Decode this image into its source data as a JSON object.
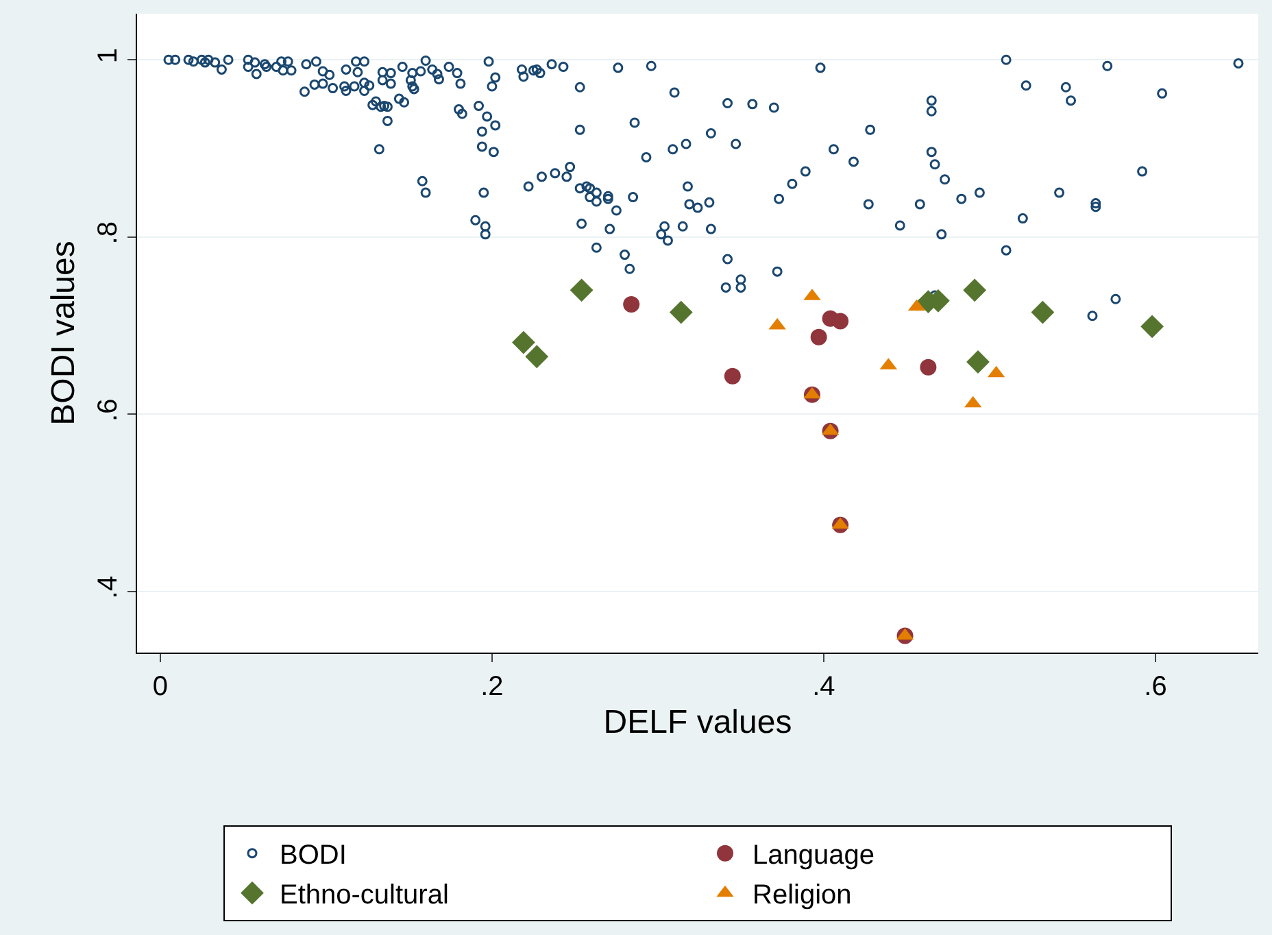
{
  "chart_data": {
    "type": "scatter",
    "xlabel": "DELF values",
    "ylabel": "BODI values",
    "xlim": [
      -0.014,
      0.662
    ],
    "ylim": [
      0.331,
      1.052
    ],
    "xticks": [
      0,
      {
        "value": 0.2,
        "label": ".2"
      },
      {
        "value": 0.4,
        "label": ".4"
      },
      {
        "value": 0.6,
        "label": ".6"
      }
    ],
    "yticks": [
      {
        "value": 0.4,
        "label": ".4"
      },
      {
        "value": 0.6,
        "label": ".6"
      },
      {
        "value": 0.8,
        "label": ".8"
      },
      1
    ],
    "grid": "y",
    "legend": "bottom",
    "series": [
      {
        "name": "BODI",
        "color": "#1a476f",
        "marker": "circle",
        "x": [
          0.005,
          0.009,
          0.017,
          0.02,
          0.025,
          0.027,
          0.029,
          0.033,
          0.037,
          0.041,
          0.053,
          0.053,
          0.057,
          0.058,
          0.063,
          0.064,
          0.07,
          0.073,
          0.074,
          0.077,
          0.079,
          0.087,
          0.088,
          0.094,
          0.093,
          0.098,
          0.098,
          0.102,
          0.104,
          0.111,
          0.112,
          0.112,
          0.118,
          0.117,
          0.119,
          0.123,
          0.123,
          0.123,
          0.126,
          0.128,
          0.13,
          0.133,
          0.135,
          0.137,
          0.137,
          0.132,
          0.134,
          0.134,
          0.139,
          0.139,
          0.144,
          0.147,
          0.146,
          0.152,
          0.151,
          0.152,
          0.153,
          0.157,
          0.16,
          0.164,
          0.167,
          0.168,
          0.174,
          0.179,
          0.181,
          0.18,
          0.182,
          0.158,
          0.16,
          0.192,
          0.197,
          0.194,
          0.194,
          0.195,
          0.19,
          0.196,
          0.196,
          0.198,
          0.202,
          0.2,
          0.218,
          0.219,
          0.225,
          0.227,
          0.229,
          0.236,
          0.243,
          0.253,
          0.276,
          0.296,
          0.31,
          0.342,
          0.357,
          0.37,
          0.398,
          0.202,
          0.201,
          0.253,
          0.286,
          0.293,
          0.309,
          0.317,
          0.332,
          0.347,
          0.406,
          0.418,
          0.428,
          0.389,
          0.381,
          0.373,
          0.427,
          0.222,
          0.23,
          0.238,
          0.245,
          0.247,
          0.253,
          0.257,
          0.259,
          0.263,
          0.259,
          0.263,
          0.27,
          0.27,
          0.275,
          0.285,
          0.318,
          0.319,
          0.324,
          0.331,
          0.254,
          0.271,
          0.263,
          0.28,
          0.304,
          0.315,
          0.302,
          0.306,
          0.332,
          0.342,
          0.51,
          0.571,
          0.65,
          0.522,
          0.546,
          0.549,
          0.604,
          0.465,
          0.465,
          0.465,
          0.467,
          0.473,
          0.458,
          0.483,
          0.494,
          0.542,
          0.564,
          0.564,
          0.592,
          0.52,
          0.446,
          0.471,
          0.51,
          0.283,
          0.35,
          0.341,
          0.35,
          0.372,
          0.576,
          0.562,
          0.467
        ],
        "values": [
          1.0,
          1.0,
          1.0,
          0.998,
          1.0,
          0.997,
          1.0,
          0.997,
          0.989,
          1.0,
          1.0,
          0.992,
          0.997,
          0.984,
          0.995,
          0.992,
          0.992,
          0.998,
          0.988,
          0.998,
          0.988,
          0.964,
          0.995,
          0.998,
          0.972,
          0.987,
          0.973,
          0.983,
          0.968,
          0.97,
          0.989,
          0.965,
          0.998,
          0.97,
          0.986,
          0.998,
          0.974,
          0.965,
          0.971,
          0.949,
          0.953,
          0.947,
          0.948,
          0.947,
          0.931,
          0.899,
          0.986,
          0.977,
          0.985,
          0.973,
          0.956,
          0.952,
          0.992,
          0.985,
          0.977,
          0.97,
          0.967,
          0.987,
          0.999,
          0.989,
          0.984,
          0.978,
          0.992,
          0.985,
          0.973,
          0.944,
          0.939,
          0.863,
          0.85,
          0.948,
          0.936,
          0.919,
          0.902,
          0.85,
          0.819,
          0.812,
          0.803,
          0.998,
          0.98,
          0.97,
          0.989,
          0.981,
          0.988,
          0.989,
          0.985,
          0.995,
          0.992,
          0.969,
          0.991,
          0.993,
          0.963,
          0.951,
          0.95,
          0.946,
          0.991,
          0.926,
          0.896,
          0.921,
          0.929,
          0.89,
          0.899,
          0.905,
          0.917,
          0.905,
          0.899,
          0.885,
          0.921,
          0.874,
          0.86,
          0.843,
          0.837,
          0.857,
          0.868,
          0.872,
          0.868,
          0.879,
          0.855,
          0.857,
          0.855,
          0.85,
          0.845,
          0.84,
          0.846,
          0.843,
          0.83,
          0.845,
          0.857,
          0.837,
          0.833,
          0.839,
          0.815,
          0.809,
          0.788,
          0.78,
          0.812,
          0.812,
          0.803,
          0.796,
          0.809,
          0.775,
          1.0,
          0.993,
          0.996,
          0.971,
          0.969,
          0.954,
          0.962,
          0.954,
          0.942,
          0.896,
          0.882,
          0.865,
          0.837,
          0.843,
          0.85,
          0.85,
          0.838,
          0.834,
          0.874,
          0.821,
          0.813,
          0.803,
          0.785,
          0.764,
          0.752,
          0.743,
          0.743,
          0.761,
          0.73,
          0.711,
          0.734
        ]
      },
      {
        "name": "Language",
        "color": "#90353b",
        "marker": "circle",
        "x": [
          0.284,
          0.345,
          0.397,
          0.404,
          0.41,
          0.393,
          0.404,
          0.41,
          0.449,
          0.463
        ],
        "values": [
          0.724,
          0.643,
          0.687,
          0.708,
          0.705,
          0.622,
          0.581,
          0.475,
          0.35,
          0.653
        ]
      },
      {
        "name": "Ethno-cultural",
        "color": "#55752f",
        "marker": "diamond",
        "x": [
          0.219,
          0.227,
          0.254,
          0.314,
          0.463,
          0.469,
          0.491,
          0.532,
          0.598,
          0.493
        ],
        "values": [
          0.681,
          0.665,
          0.74,
          0.715,
          0.727,
          0.728,
          0.74,
          0.715,
          0.699,
          0.659
        ]
      },
      {
        "name": "Religion",
        "color": "#e37e00",
        "marker": "triangle",
        "x": [
          0.393,
          0.372,
          0.393,
          0.404,
          0.41,
          0.449,
          0.439,
          0.456,
          0.49,
          0.504
        ],
        "values": [
          0.733,
          0.7,
          0.622,
          0.581,
          0.475,
          0.35,
          0.655,
          0.721,
          0.612,
          0.646
        ]
      }
    ]
  }
}
